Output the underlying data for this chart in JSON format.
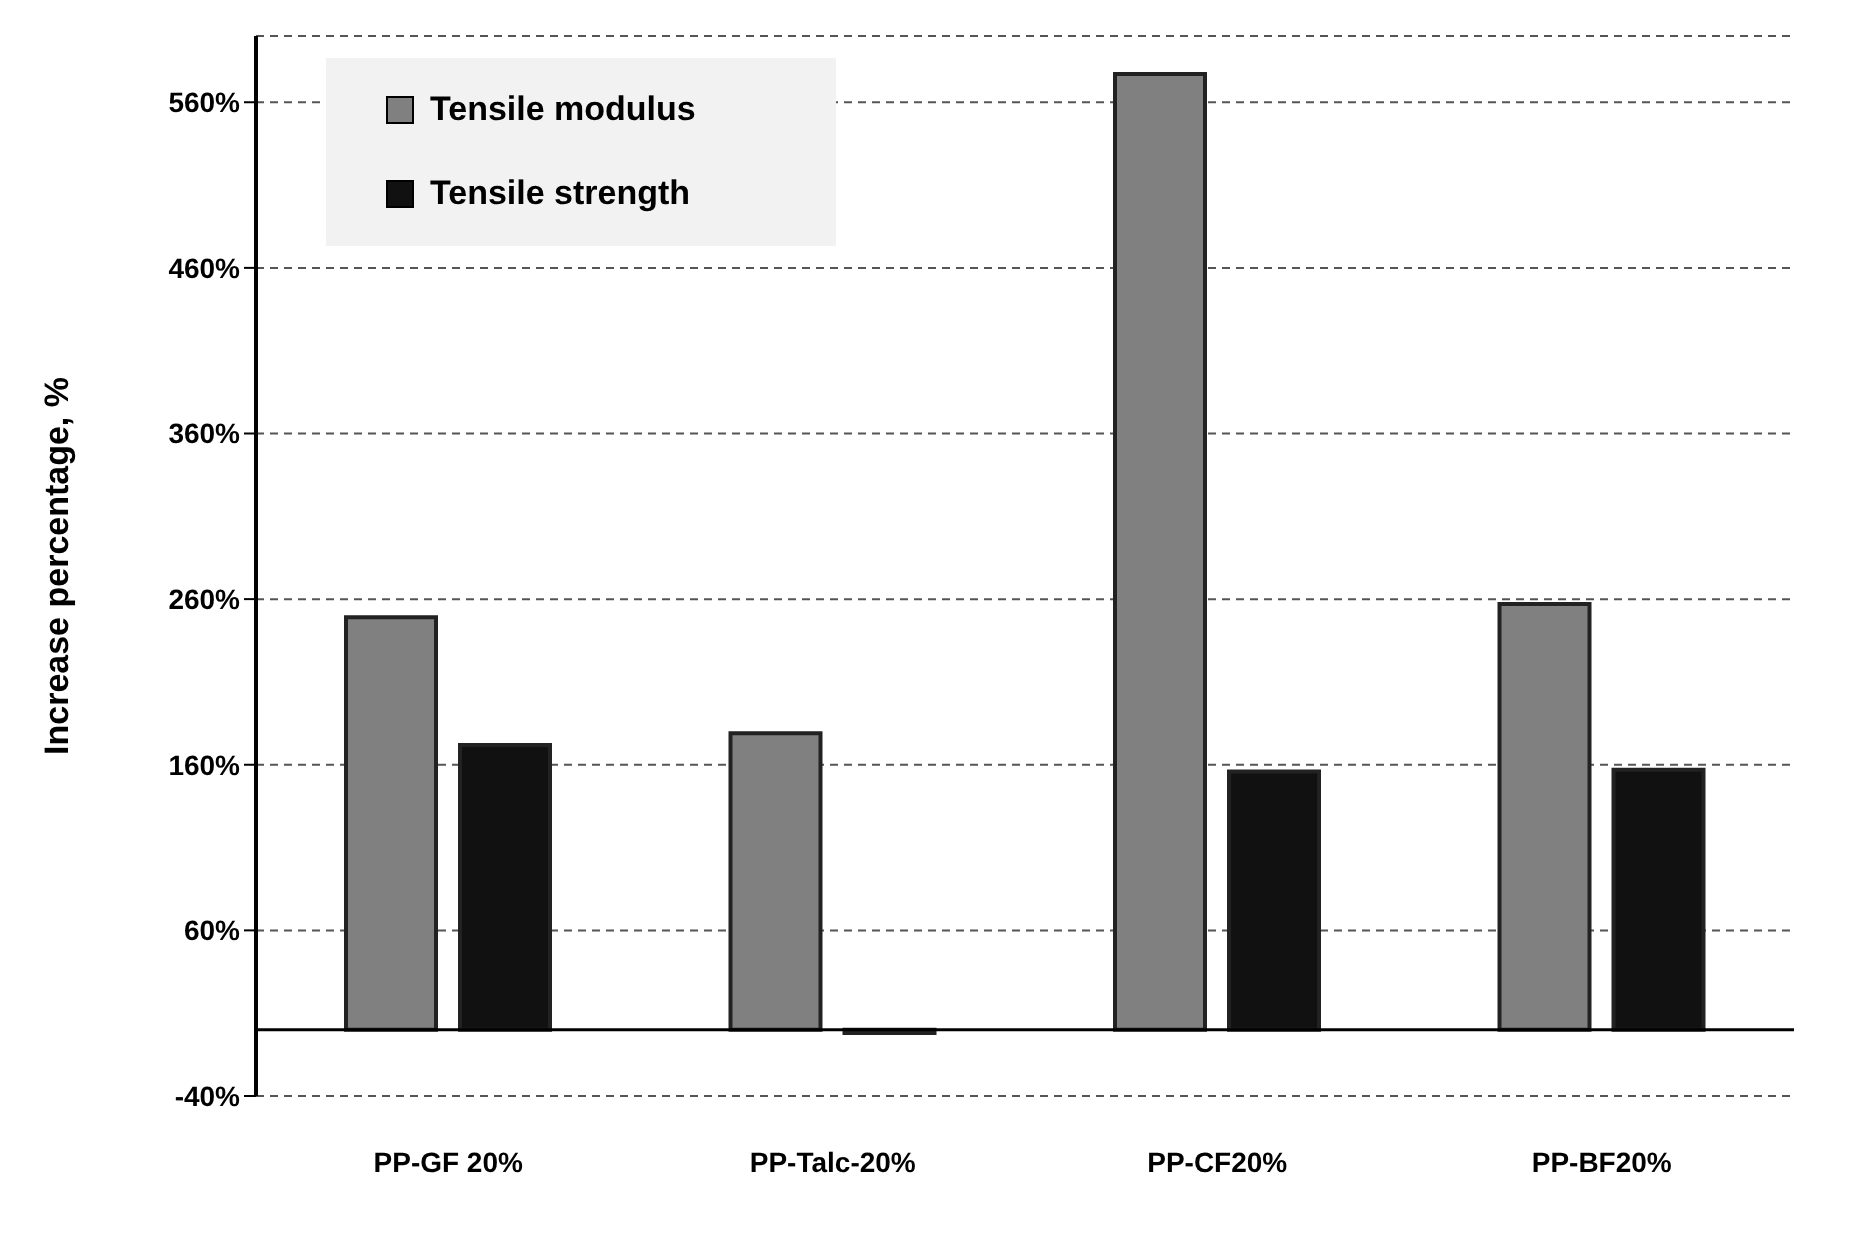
{
  "chart_data": {
    "type": "bar",
    "ylabel": "Increase percentage, %",
    "categories": [
      "PP-GF 20%",
      "PP-Talc-20%",
      "PP-CF20%",
      "PP-BF20%"
    ],
    "series": [
      {
        "name": "Tensile modulus",
        "color": "#808080",
        "values": [
          249,
          179,
          577,
          257
        ]
      },
      {
        "name": "Tensile strength",
        "color": "#111111",
        "values": [
          172,
          -2,
          156,
          157
        ]
      }
    ],
    "ylim": [
      -40,
      600
    ],
    "yticks": [
      {
        "value": -40,
        "label": "-40%"
      },
      {
        "value": 60,
        "label": "60%"
      },
      {
        "value": 160,
        "label": "160%"
      },
      {
        "value": 260,
        "label": "260%"
      },
      {
        "value": 360,
        "label": "360%"
      },
      {
        "value": 460,
        "label": "460%"
      },
      {
        "value": 560,
        "label": "560%"
      }
    ],
    "grid": "y",
    "legend": "top left",
    "ref_lines": [
      {
        "axis": "y",
        "value": 0,
        "color": "#000000"
      }
    ]
  }
}
